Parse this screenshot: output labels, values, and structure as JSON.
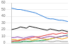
{
  "chart_data": {
    "type": "line",
    "categories": [
      null,
      null,
      null,
      null,
      null,
      null,
      null,
      null,
      null,
      null,
      null,
      null,
      null,
      null,
      null,
      null,
      null,
      null,
      null,
      null
    ],
    "series": [
      {
        "color": "#2f7ed8",
        "values": [
          52,
          51,
          50,
          50,
          49,
          48,
          47,
          46,
          45,
          43,
          41,
          39,
          37,
          36,
          36,
          35,
          34,
          34,
          33,
          32
        ]
      },
      {
        "color": "#111111",
        "values": [
          20,
          21,
          22,
          24,
          23,
          22,
          25,
          24,
          23,
          22,
          21,
          20,
          19,
          21,
          20,
          19,
          18,
          19,
          18,
          17
        ]
      },
      {
        "color": "#e03a3a",
        "values": [
          2,
          3,
          3,
          4,
          5,
          6,
          7,
          8,
          9,
          9,
          10,
          11,
          12,
          13,
          14,
          13,
          14,
          15,
          14,
          15
        ]
      },
      {
        "color": "#8e44ad",
        "values": [
          8,
          8,
          9,
          8,
          7,
          8,
          9,
          10,
          9,
          8,
          7,
          8,
          9,
          10,
          9,
          8,
          9,
          10,
          11,
          10
        ]
      },
      {
        "color": "#f39c12",
        "values": [
          5,
          5,
          4,
          5,
          5,
          6,
          5,
          4,
          5,
          6,
          7,
          6,
          5,
          6,
          7,
          8,
          7,
          6,
          7,
          8
        ]
      },
      {
        "color": "#27ae60",
        "values": [
          1,
          1,
          1,
          1,
          2,
          2,
          2,
          3,
          3,
          3,
          4,
          4,
          5,
          6,
          7,
          8,
          9,
          10,
          11,
          12
        ]
      },
      {
        "color": "#999999",
        "values": [
          3,
          3,
          3,
          2,
          3,
          3,
          2,
          2,
          3,
          3,
          2,
          3,
          3,
          2,
          2,
          3,
          3,
          2,
          2,
          2
        ]
      }
    ],
    "ylim": [
      0,
      60
    ],
    "yticks": [
      0,
      10,
      20,
      30,
      40,
      50,
      60
    ],
    "grid": true,
    "tick_labels": "y"
  }
}
